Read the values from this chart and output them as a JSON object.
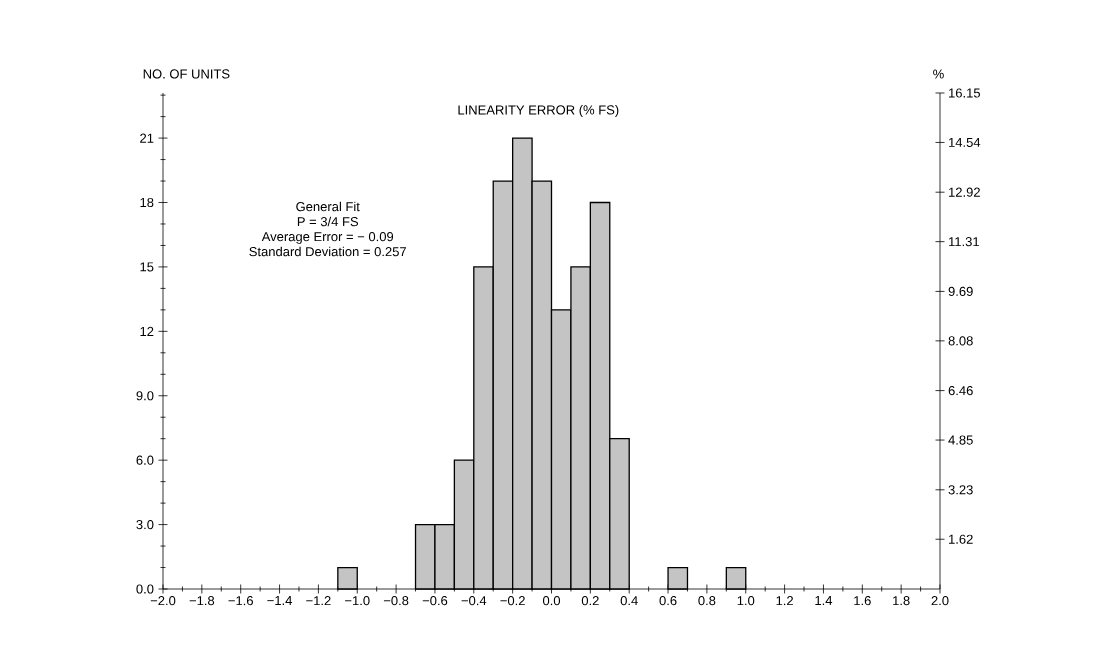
{
  "chart_data": {
    "type": "histogram",
    "title": "LINEARITY ERROR (% FS)",
    "ylabel": "NO. OF UNITS",
    "y2label": "%",
    "annotations": [
      "General Fit",
      "P = 3/4 FS",
      "Average Error = − 0.09",
      "Standard Deviation = 0.257"
    ],
    "bins": [
      -1.1,
      -1.0,
      -0.9,
      -0.8,
      -0.7,
      -0.6,
      -0.5,
      -0.4,
      -0.3,
      -0.2,
      -0.1,
      0.0,
      0.1,
      0.2,
      0.3,
      0.4,
      0.5,
      0.6,
      0.7,
      0.8,
      0.9,
      1.0
    ],
    "values": [
      1,
      0,
      0,
      0,
      3,
      3,
      6,
      15,
      19,
      21,
      19,
      13,
      15,
      18,
      7,
      0,
      0,
      1,
      0,
      0,
      1
    ],
    "color": "#c4c4c4",
    "xlim": [
      -2.0,
      2.0
    ],
    "xticks": [
      {
        "value": -2.0,
        "label": "−2.0"
      },
      {
        "value": -1.9,
        "label": null
      },
      {
        "value": -1.8,
        "label": "−1.8"
      },
      {
        "value": -1.7,
        "label": null
      },
      {
        "value": -1.6,
        "label": "−1.6"
      },
      {
        "value": -1.5,
        "label": null
      },
      {
        "value": -1.4,
        "label": "−1.4"
      },
      {
        "value": -1.3,
        "label": null
      },
      {
        "value": -1.2,
        "label": "−1.2"
      },
      {
        "value": -1.1,
        "label": null
      },
      {
        "value": -1.0,
        "label": "−1.0"
      },
      {
        "value": -0.9,
        "label": null
      },
      {
        "value": -0.8,
        "label": "−0.8"
      },
      {
        "value": -0.7,
        "label": null
      },
      {
        "value": -0.6,
        "label": "−0.6"
      },
      {
        "value": -0.5,
        "label": null
      },
      {
        "value": -0.4,
        "label": "−0.4"
      },
      {
        "value": -0.3,
        "label": null
      },
      {
        "value": -0.2,
        "label": "−0.2"
      },
      {
        "value": -0.1,
        "label": null
      },
      {
        "value": 0.0,
        "label": "0.0"
      },
      {
        "value": 0.1,
        "label": null
      },
      {
        "value": 0.2,
        "label": "0.2"
      },
      {
        "value": 0.3,
        "label": null
      },
      {
        "value": 0.4,
        "label": "0.4"
      },
      {
        "value": 0.5,
        "label": null
      },
      {
        "value": 0.6,
        "label": "0.6"
      },
      {
        "value": 0.7,
        "label": null
      },
      {
        "value": 0.8,
        "label": "0.8"
      },
      {
        "value": 0.9,
        "label": null
      },
      {
        "value": 1.0,
        "label": "1.0"
      },
      {
        "value": 1.1,
        "label": null
      },
      {
        "value": 1.2,
        "label": "1.2"
      },
      {
        "value": 1.3,
        "label": null
      },
      {
        "value": 1.4,
        "label": "1.4"
      },
      {
        "value": 1.5,
        "label": null
      },
      {
        "value": 1.6,
        "label": "1.6"
      },
      {
        "value": 1.7,
        "label": null
      },
      {
        "value": 1.8,
        "label": "1.8"
      },
      {
        "value": 1.9,
        "label": null
      },
      {
        "value": 2.0,
        "label": "2.0"
      }
    ],
    "ylim": [
      0,
      23.1
    ],
    "yticks": [
      {
        "value": 0,
        "label": "0.0"
      },
      {
        "value": 1,
        "label": null
      },
      {
        "value": 2,
        "label": null
      },
      {
        "value": 3,
        "label": "3.0"
      },
      {
        "value": 4,
        "label": null
      },
      {
        "value": 5,
        "label": null
      },
      {
        "value": 6,
        "label": "6.0"
      },
      {
        "value": 7,
        "label": null
      },
      {
        "value": 8,
        "label": null
      },
      {
        "value": 9,
        "label": "9.0"
      },
      {
        "value": 10,
        "label": null
      },
      {
        "value": 11,
        "label": null
      },
      12,
      {
        "value": 13,
        "label": null
      },
      {
        "value": 14,
        "label": null
      },
      15,
      {
        "value": 16,
        "label": null
      },
      {
        "value": 17,
        "label": null
      },
      18,
      {
        "value": 19,
        "label": null
      },
      {
        "value": 20,
        "label": null
      },
      21,
      {
        "value": 22,
        "label": null
      },
      {
        "value": 23,
        "label": null
      }
    ],
    "y2lim": [
      0,
      16.15
    ],
    "y2ticks": [
      1.62,
      3.23,
      4.85,
      6.46,
      8.08,
      9.69,
      11.31,
      12.92,
      14.54,
      16.15
    ]
  }
}
